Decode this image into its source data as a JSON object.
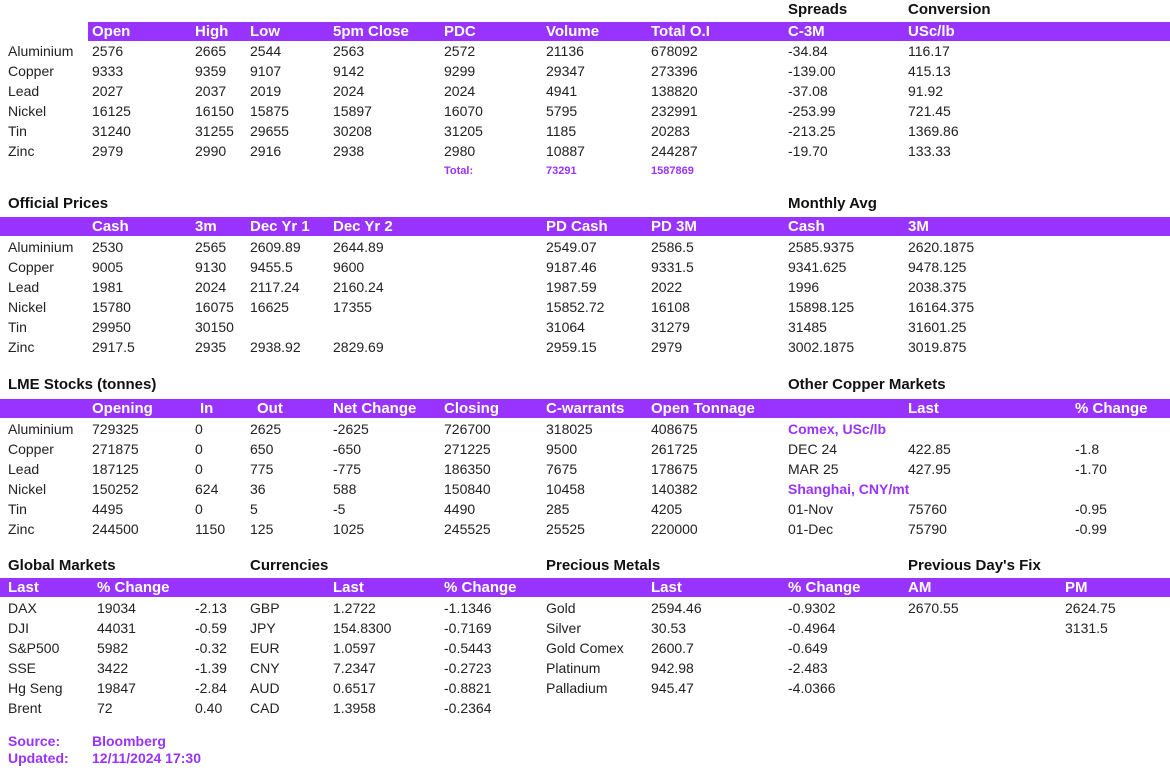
{
  "market_summary": {
    "headings": [
      "Spreads",
      "Conversion"
    ],
    "columns": [
      "Open",
      "High",
      "Low",
      "5pm Close",
      "PDC",
      "Volume",
      "Total O.I",
      "C-3M",
      "USc/lb"
    ],
    "rows": [
      [
        "Aluminium",
        "2576",
        "2665",
        "2544",
        "2563",
        "2572",
        "21136",
        "678092",
        "-34.84",
        "116.17"
      ],
      [
        "Copper",
        "9333",
        "9359",
        "9107",
        "9142",
        "9299",
        "29347",
        "273396",
        "-139.00",
        "415.13"
      ],
      [
        "Lead",
        "2027",
        "2037",
        "2019",
        "2024",
        "2024",
        "4941",
        "138820",
        "-37.08",
        "91.92"
      ],
      [
        "Nickel",
        "16125",
        "16150",
        "15875",
        "15897",
        "16070",
        "5795",
        "232991",
        "-253.99",
        "721.45"
      ],
      [
        "Tin",
        "31240",
        "31255",
        "29655",
        "30208",
        "31205",
        "1185",
        "20283",
        "-213.25",
        "1369.86"
      ],
      [
        "Zinc",
        "2979",
        "2990",
        "2916",
        "2938",
        "2980",
        "10887",
        "244287",
        "-19.70",
        "133.33"
      ]
    ],
    "total": [
      "Total:",
      "73291",
      "1587869"
    ]
  },
  "official_prices": {
    "headings": [
      "Official Prices",
      "Monthly Avg"
    ],
    "columns": [
      "Cash",
      "3m",
      "Dec Yr 1",
      "Dec Yr 2",
      "PD Cash",
      "PD 3M",
      "Cash",
      "3M"
    ],
    "rows": [
      [
        "Aluminium",
        "2530",
        "2565",
        "2609.89",
        "2644.89",
        "2549.07",
        "2586.5",
        "2585.9375",
        "2620.1875"
      ],
      [
        "Copper",
        "9005",
        "9130",
        "9455.5",
        "9600",
        "9187.46",
        "9331.5",
        "9341.625",
        "9478.125"
      ],
      [
        "Lead",
        "1981",
        "2024",
        "2117.24",
        "2160.24",
        "1987.59",
        "2022",
        "1996",
        "2038.375"
      ],
      [
        "Nickel",
        "15780",
        "16075",
        "16625",
        "17355",
        "15852.72",
        "16108",
        "15898.125",
        "16164.375"
      ],
      [
        "Tin",
        "29950",
        "30150",
        null,
        null,
        "31064",
        "31279",
        "31485",
        "31601.25"
      ],
      [
        "Zinc",
        "2917.5",
        "2935",
        "2938.92",
        "2829.69",
        "2959.15",
        "2979",
        "3002.1875",
        "3019.875"
      ]
    ]
  },
  "lme_stocks": {
    "headings": [
      "LME Stocks (tonnes)"
    ],
    "columns": [
      "Opening",
      "In",
      "Out",
      "Net Change",
      "Closing",
      "C-warrants",
      "Open Tonnage"
    ],
    "rows": [
      [
        "Aluminium",
        "729325",
        "0",
        "2625",
        "-2625",
        "726700",
        "318025",
        "408675"
      ],
      [
        "Copper",
        "271875",
        "0",
        "650",
        "-650",
        "271225",
        "9500",
        "261725"
      ],
      [
        "Lead",
        "187125",
        "0",
        "775",
        "-775",
        "186350",
        "7675",
        "178675"
      ],
      [
        "Nickel",
        "150252",
        "624",
        "36",
        "588",
        "150840",
        "10458",
        "140382"
      ],
      [
        "Tin",
        "4495",
        "0",
        "5",
        "-5",
        "4490",
        "285",
        "4205"
      ],
      [
        "Zinc",
        "244500",
        "1150",
        "125",
        "1025",
        "245525",
        "25525",
        "220000"
      ]
    ]
  },
  "other_copper": {
    "headings": [
      "Other Copper Markets"
    ],
    "columns": [
      "Last",
      "% Change"
    ],
    "groups": [
      {
        "name": "Comex, USc/lb",
        "rows": [
          [
            "DEC 24",
            "422.85",
            "-1.8"
          ],
          [
            "MAR 25",
            "427.95",
            "-1.70"
          ]
        ]
      },
      {
        "name": "Shanghai, CNY/mt",
        "rows": [
          [
            "01-Nov",
            "75760",
            "-0.95"
          ],
          [
            "01-Dec",
            "75790",
            "-0.99"
          ]
        ]
      }
    ]
  },
  "global_markets": {
    "headings": [
      "Global Markets"
    ],
    "columns": [
      "Last",
      "% Change"
    ],
    "rows": [
      [
        "DAX",
        "19034",
        "-2.13"
      ],
      [
        "DJI",
        "44031",
        "-0.59"
      ],
      [
        "S&P500",
        "5982",
        "-0.32"
      ],
      [
        "SSE",
        "3422",
        "-1.39"
      ],
      [
        "Hg Seng",
        "19847",
        "-2.84"
      ],
      [
        "Brent",
        "72",
        "0.40"
      ]
    ]
  },
  "currencies": {
    "headings": [
      "Currencies"
    ],
    "columns": [
      "Last",
      "% Change"
    ],
    "rows": [
      [
        "GBP",
        "1.2722",
        "-1.1346"
      ],
      [
        "JPY",
        "154.8300",
        "-0.7169"
      ],
      [
        "EUR",
        "1.0597",
        "-0.5443"
      ],
      [
        "CNY",
        "7.2347",
        "-0.2723"
      ],
      [
        "AUD",
        "0.6517",
        "-0.8821"
      ],
      [
        "CAD",
        "1.3958",
        "-0.2364"
      ]
    ]
  },
  "precious_metals": {
    "headings": [
      "Precious Metals"
    ],
    "columns": [
      "Last",
      "% Change"
    ],
    "rows": [
      [
        "Gold",
        "2594.46",
        "-0.9302"
      ],
      [
        "Silver",
        "30.53",
        "-0.4964"
      ],
      [
        "Gold Comex",
        "2600.7",
        "-0.649"
      ],
      [
        "Platinum",
        "942.98",
        "-2.483"
      ],
      [
        "Palladium",
        "945.47",
        "-4.0366"
      ]
    ]
  },
  "previous_fix": {
    "headings": [
      "Previous Day's Fix"
    ],
    "columns": [
      "AM",
      "PM"
    ],
    "rows": [
      [
        "2670.55",
        "2624.75"
      ],
      [
        null,
        "3131.5"
      ]
    ]
  },
  "footer": {
    "source_label": "Source:",
    "source": "Bloomberg",
    "updated_label": "Updated:",
    "updated": "12/11/2024 17:30"
  }
}
